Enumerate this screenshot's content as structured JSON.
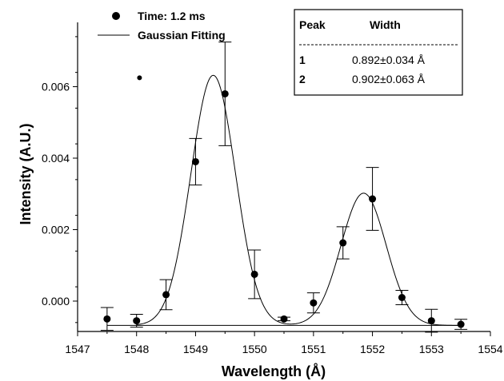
{
  "chart_data": {
    "type": "scatter",
    "xlabel": "Wavelength (Å)",
    "ylabel": "Intensity (A.U.)",
    "xlim": [
      1547,
      1554
    ],
    "ylim": [
      -0.00085,
      0.0078
    ],
    "x_ticks": [
      1547,
      1548,
      1549,
      1550,
      1551,
      1552,
      1553,
      1554
    ],
    "x_tick_labels": [
      "1547",
      "1548",
      "1549",
      "1550",
      "1551",
      "1552",
      "1553",
      "1554"
    ],
    "y_ticks": [
      0.0,
      0.002,
      0.004,
      0.006
    ],
    "y_tick_labels": [
      "0.000",
      "0.002",
      "0.004",
      "0.006"
    ],
    "legend_position": "top-left",
    "grid": false,
    "series": [
      {
        "name": "Time: 1.2 ms",
        "kind": "points_with_error",
        "x": [
          1547.5,
          1548.0,
          1548.5,
          1549.0,
          1549.5,
          1550.0,
          1550.5,
          1551.0,
          1551.5,
          1552.0,
          1552.5,
          1553.0,
          1553.5
        ],
        "y": [
          -0.0005,
          -0.00055,
          0.00018,
          0.0039,
          0.0058,
          0.00075,
          -0.0005,
          -5e-05,
          0.00163,
          0.00286,
          0.0001,
          -0.00055,
          -0.00065
        ],
        "err": [
          0.00032,
          0.00018,
          0.00042,
          0.00065,
          0.00145,
          0.00068,
          5e-05,
          0.00028,
          0.00045,
          0.00088,
          0.0002,
          0.00032,
          0.00014
        ]
      },
      {
        "name": "Gaussian Fitting",
        "kind": "fit_line",
        "baseline": -0.00068,
        "peaks": [
          {
            "center": 1549.3,
            "amplitude": 0.007,
            "fwhm": 0.892
          },
          {
            "center": 1551.85,
            "amplitude": 0.0037,
            "fwhm": 0.902
          }
        ]
      }
    ],
    "stray_point": {
      "x": 1548.05,
      "y": 0.00625
    },
    "table": {
      "headers": [
        "Peak",
        "Width"
      ],
      "rows": [
        {
          "peak": "1",
          "width": "0.892±0.034 Å"
        },
        {
          "peak": "2",
          "width": "0.902±0.063 Å"
        }
      ]
    }
  }
}
